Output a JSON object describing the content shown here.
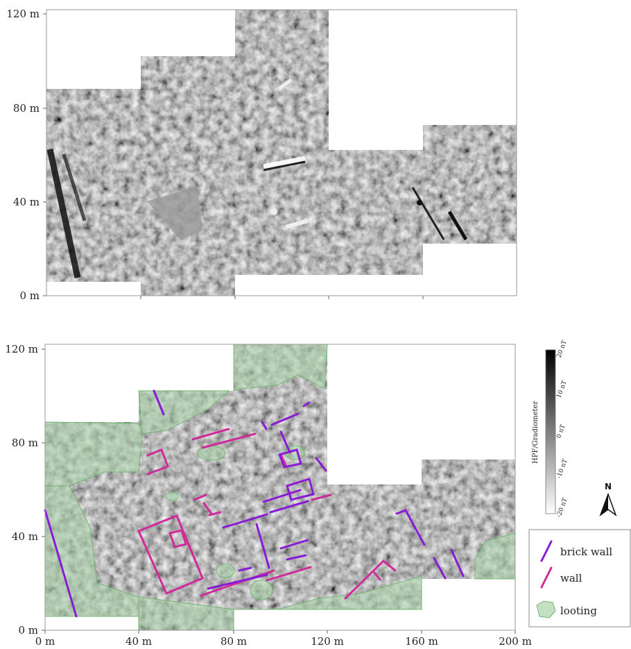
{
  "top_map": {
    "y_ticks": [
      "120 m",
      "80 m",
      "40 m",
      "0 m"
    ]
  },
  "bottom_map": {
    "y_ticks": [
      "120 m",
      "80 m",
      "40 m",
      "0 m"
    ],
    "x_ticks": [
      "0 m",
      "40 m",
      "80 m",
      "120 m",
      "160 m",
      "200 m"
    ]
  },
  "colorbar": {
    "title": "HPF/Gradiometer",
    "labels": [
      "20 nT",
      "10 nT",
      "0 nT",
      "-10 nT",
      "-20 nT"
    ]
  },
  "north_arrow": {
    "label": "N"
  },
  "legend": {
    "items": [
      {
        "label": "brick wall",
        "color": "#8a1ad6"
      },
      {
        "label": "wall",
        "color": "#d02a9a"
      },
      {
        "label": "looting",
        "color": "#a9d3a9"
      }
    ]
  }
}
